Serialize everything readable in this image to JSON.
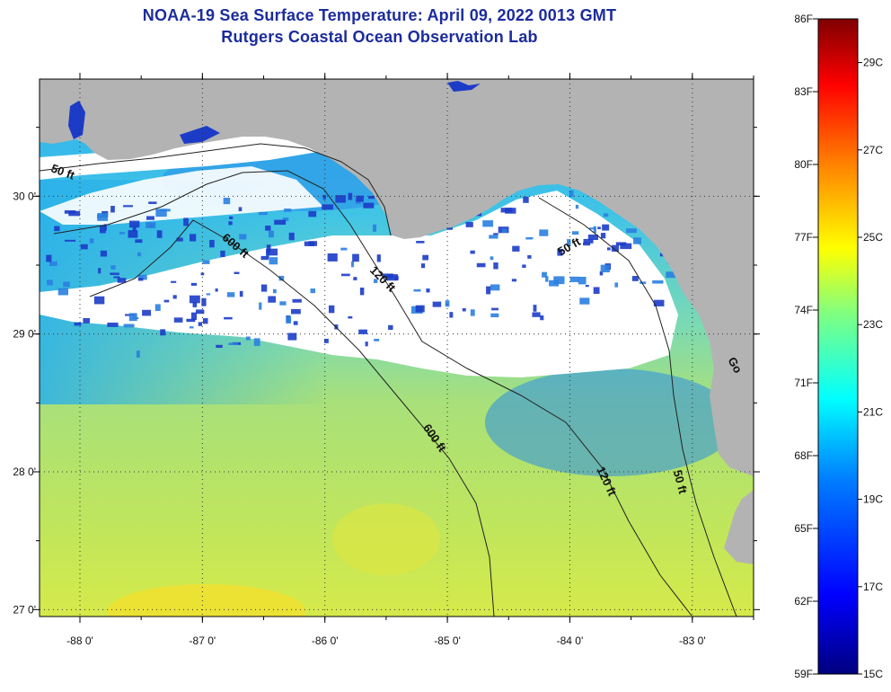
{
  "title": {
    "line1": "NOAA-19 Sea Surface Temperature:  April 09, 2022 0013 GMT",
    "line2": "Rutgers Coastal Ocean Observation Lab"
  },
  "axes": {
    "lon_ticks": [
      {
        "value": -88,
        "label": "-88 0'"
      },
      {
        "value": -87,
        "label": "-87 0'"
      },
      {
        "value": -86,
        "label": "-86 0'"
      },
      {
        "value": -85,
        "label": "-85 0'"
      },
      {
        "value": -84,
        "label": "-84 0'"
      },
      {
        "value": -83,
        "label": "-83 0'"
      }
    ],
    "lat_ticks": [
      {
        "value": 30,
        "label": "30 0'"
      },
      {
        "value": 29,
        "label": "29 0'"
      },
      {
        "value": 28,
        "label": "28 0'"
      },
      {
        "value": 27,
        "label": "27 0'"
      }
    ],
    "lon_range": [
      -88.33,
      -82.5
    ],
    "lat_range": [
      26.95,
      30.85
    ]
  },
  "contour_labels": [
    {
      "text": "50 ft",
      "lon": -88.15,
      "lat": 30.15,
      "angle": 20
    },
    {
      "text": "600 ft",
      "lon": -86.75,
      "lat": 29.62,
      "angle": 40
    },
    {
      "text": "120 ft",
      "lon": -85.55,
      "lat": 29.38,
      "angle": 45
    },
    {
      "text": "50 ft",
      "lon": -83.99,
      "lat": 29.61,
      "angle": -30
    },
    {
      "text": "Go",
      "lon": -82.68,
      "lat": 28.76,
      "angle": 60
    },
    {
      "text": "600 ft",
      "lon": -85.13,
      "lat": 28.23,
      "angle": 55
    },
    {
      "text": "120 ft",
      "lon": -83.73,
      "lat": 27.92,
      "angle": 65
    },
    {
      "text": "50 ft",
      "lon": -83.13,
      "lat": 27.92,
      "angle": 75
    }
  ],
  "colorbar": {
    "min_f": 59,
    "max_f": 86,
    "f_labels": [
      "86F",
      "83F",
      "80F",
      "77F",
      "74F",
      "71F",
      "68F",
      "65F",
      "62F",
      "59F"
    ],
    "c_labels": [
      "29C",
      "27C",
      "25C",
      "23C",
      "21C",
      "19C",
      "17C",
      "15C"
    ],
    "c_values": [
      29,
      27,
      25,
      23,
      21,
      19,
      17,
      15
    ],
    "colors": [
      "#00007f",
      "#0000ff",
      "#0080ff",
      "#00ffff",
      "#80ff80",
      "#ffff00",
      "#ff8000",
      "#ff0000",
      "#7f0000"
    ]
  },
  "colors": {
    "land": "#b3b3b3",
    "cloud": "#ffffff",
    "cold_water": "#1c3cc8",
    "ocean_warm": "#b9e35a",
    "ocean_cool": "#33b6ee",
    "title": "#1c2c9c"
  }
}
